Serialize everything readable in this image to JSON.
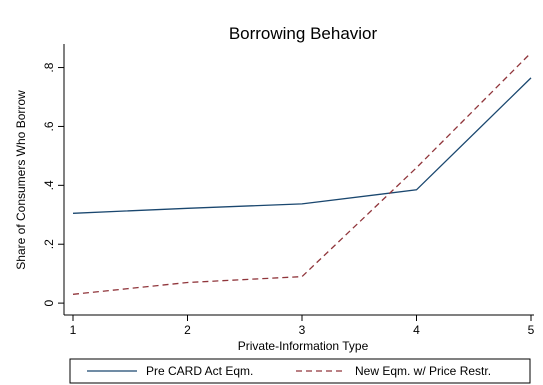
{
  "chart_data": {
    "type": "line",
    "title": "Borrowing Behavior",
    "xlabel": "Private-Information Type",
    "ylabel": "Share of Consumers Who Borrow",
    "x": [
      1,
      2,
      3,
      4,
      5
    ],
    "xticks": [
      1,
      2,
      3,
      4,
      5
    ],
    "xtick_labels": [
      "1",
      "2",
      "3",
      "4",
      "5"
    ],
    "yticks": [
      0,
      0.2,
      0.4,
      0.6,
      0.8
    ],
    "ytick_labels": [
      "0",
      ".2",
      ".4",
      ".6",
      ".8"
    ],
    "xlim": [
      1,
      5
    ],
    "ylim": [
      -0.02,
      0.88
    ],
    "grid": false,
    "legend_position": "bottom",
    "series": [
      {
        "name": "Pre CARD Act Eqm.",
        "values": [
          0.305,
          0.322,
          0.337,
          0.385,
          0.765
        ],
        "color": "#1a476f",
        "dash": "solid"
      },
      {
        "name": "New Eqm. w/ Price Restr.",
        "values": [
          0.03,
          0.07,
          0.09,
          0.46,
          0.85
        ],
        "color": "#90353b",
        "dash": "dashed"
      }
    ]
  }
}
